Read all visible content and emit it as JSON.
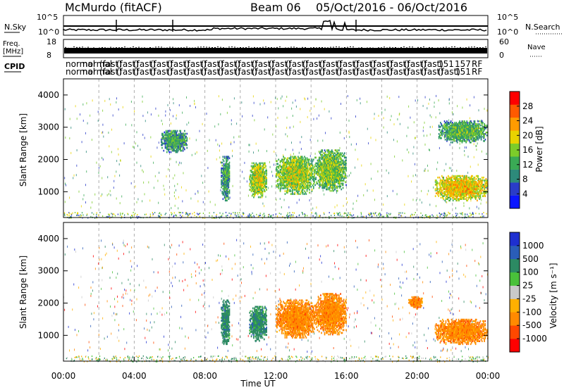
{
  "header": {
    "station": "McMurdo (fitACF)",
    "beam": "Beam 06",
    "date_range": "05/Oct/2016 - 06/Oct/2016"
  },
  "noise_strip": {
    "left_label": "N.Sky",
    "left_ticks": [
      "10^5",
      "10^0"
    ],
    "right_label": "N.Search",
    "right_ticks": [
      "10^5",
      "10^0"
    ]
  },
  "freq_strip": {
    "left_label_1": "Freq.",
    "left_label_2": "[MHz]",
    "left_ticks": [
      "18",
      "8"
    ],
    "right_label": "Nave",
    "right_ticks": [
      "60",
      "0"
    ]
  },
  "cpid": {
    "label": "CPID",
    "row1": [
      "normal",
      "normal",
      "(fast)",
      "(fast)",
      "(fast)",
      "(fast)",
      "(fast)",
      "(fast)",
      "(fast)",
      "(fast)",
      "(fast)",
      "(fast)",
      "(fast)",
      "(fast)",
      "(fast)",
      "(fast)",
      "(fast)",
      "(fast)",
      "(fast)",
      "(fast)",
      "(fast)",
      "(fast)",
      "151",
      "157",
      "RF"
    ],
    "row2": [
      "normal",
      "normal",
      "(fast)",
      "(fast)",
      "(fast)",
      "(fast)",
      "(fast)",
      "(fast)",
      "(fast)",
      "(fast)",
      "(fast)",
      "(fast)",
      "(fast)",
      "(fast)",
      "(fast)",
      "(fast)",
      "(fast)",
      "(fast)",
      "(fast)",
      "(fast)",
      "(fast)",
      "(fast)",
      "(fast)",
      "151",
      "RF"
    ]
  },
  "colors": {
    "power_scale": [
      "#0b16ff",
      "#2a3cc8",
      "#2d8a7a",
      "#3aaa55",
      "#7ccc2a",
      "#e8d300",
      "#ff9b00",
      "#ff5a00",
      "#ff0000"
    ],
    "velocity_scale": [
      "#1e2fd0",
      "#2a5db8",
      "#2c8a63",
      "#49c13a",
      "#c9c9c9",
      "#ffb000",
      "#ff8a00",
      "#ff4800",
      "#ff0000"
    ]
  },
  "chart_data": [
    {
      "type": "heatmap",
      "title": "",
      "xlabel": "",
      "ylabel": "Slant Range [km]",
      "xlim": [
        0,
        24
      ],
      "ylim": [
        200,
        4500
      ],
      "x_ticks": [],
      "y_ticks": [
        "1000",
        "2000",
        "3000",
        "4000"
      ],
      "colorbar": {
        "label": "Power [dB]",
        "ticks": [
          "4",
          "8",
          "12",
          "16",
          "20",
          "24",
          "28"
        ]
      },
      "echo_regions": [
        {
          "t_start": 8.9,
          "t_end": 9.4,
          "range_low": 700,
          "range_high": 2100,
          "mean_value": 10
        },
        {
          "t_start": 10.5,
          "t_end": 11.5,
          "range_low": 800,
          "range_high": 1900,
          "mean_value": 17
        },
        {
          "t_start": 12.0,
          "t_end": 14.2,
          "range_low": 900,
          "range_high": 2100,
          "mean_value": 16
        },
        {
          "t_start": 14.2,
          "t_end": 16.0,
          "range_low": 1000,
          "range_high": 2300,
          "mean_value": 14
        },
        {
          "t_start": 21.0,
          "t_end": 24.0,
          "range_low": 700,
          "range_high": 1500,
          "mean_value": 20
        },
        {
          "t_start": 21.2,
          "t_end": 24.0,
          "range_low": 2500,
          "range_high": 3200,
          "mean_value": 12
        },
        {
          "t_start": 5.5,
          "t_end": 7.0,
          "range_low": 2200,
          "range_high": 2900,
          "mean_value": 10
        }
      ]
    },
    {
      "type": "heatmap",
      "title": "",
      "xlabel": "Time UT",
      "ylabel": "Slant Range [km]",
      "xlim": [
        0,
        24
      ],
      "ylim": [
        200,
        4500
      ],
      "x_ticks": [
        "00:00",
        "04:00",
        "08:00",
        "12:00",
        "16:00",
        "20:00",
        "00:00"
      ],
      "y_ticks": [
        "1000",
        "2000",
        "3000",
        "4000"
      ],
      "colorbar": {
        "label": "Velocity [m s⁻¹]",
        "ticks": [
          "1000",
          "500",
          "100",
          "25",
          "-25",
          "-100",
          "-500",
          "-1000"
        ]
      },
      "echo_regions": [
        {
          "t_start": 8.9,
          "t_end": 9.4,
          "range_low": 700,
          "range_high": 2100,
          "mean_value": 100
        },
        {
          "t_start": 10.5,
          "t_end": 11.5,
          "range_low": 800,
          "range_high": 1900,
          "mean_value": 150
        },
        {
          "t_start": 12.0,
          "t_end": 14.2,
          "range_low": 900,
          "range_high": 2100,
          "mean_value": -300
        },
        {
          "t_start": 14.2,
          "t_end": 16.0,
          "range_low": 1000,
          "range_high": 2300,
          "mean_value": -250
        },
        {
          "t_start": 21.0,
          "t_end": 24.0,
          "range_low": 700,
          "range_high": 1500,
          "mean_value": -300
        },
        {
          "t_start": 19.5,
          "t_end": 20.3,
          "range_low": 1800,
          "range_high": 2200,
          "mean_value": -300
        }
      ]
    }
  ]
}
